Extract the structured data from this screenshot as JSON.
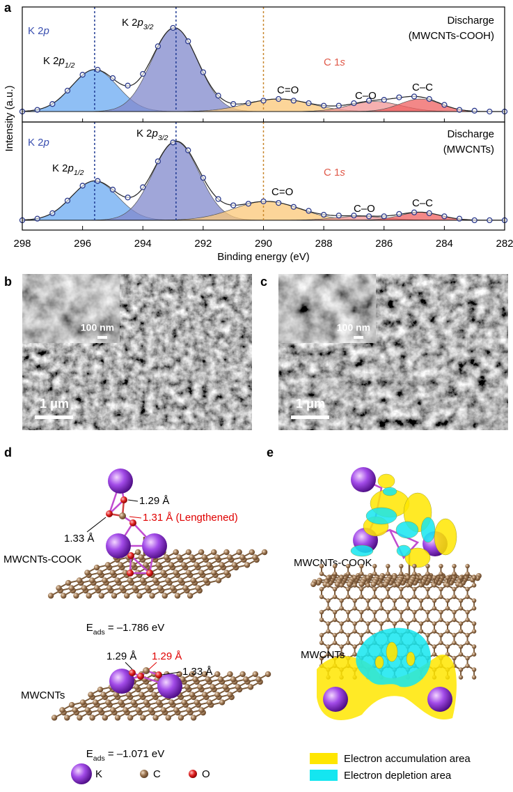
{
  "chart_data": {
    "type": "line",
    "panel_label": "a",
    "xlabel": "Binding energy (eV)",
    "ylabel": "Intensity (a.u.)",
    "xlim": [
      298,
      282
    ],
    "xticks": [
      298,
      296,
      294,
      292,
      290,
      288,
      286,
      284,
      282
    ],
    "ylim": [
      -0.125,
      1.25
    ],
    "reference_lines": [
      {
        "x": 295.6,
        "color": "#1f3a93"
      },
      {
        "x": 292.9,
        "color": "#1f3a93"
      },
      {
        "x": 290.0,
        "color": "#c8862a"
      }
    ],
    "marker_color": "#2b3a8c",
    "subplots": [
      {
        "title": [
          "Discharge",
          "(MWCNTs-COOH)"
        ],
        "groups": [
          {
            "text": [
              "K 2",
              "p"
            ],
            "color": "#3a4fb0"
          },
          {
            "text": [
              "C 1",
              "s"
            ],
            "color": "#e05a4a"
          }
        ],
        "components": [
          {
            "label": [
              "K 2",
              "p",
              "1/2"
            ],
            "center": 295.6,
            "height": 0.5,
            "fwhm": 1.8,
            "color": "#6aaaf2"
          },
          {
            "label": [
              "K 2",
              "p",
              "3/2"
            ],
            "center": 292.95,
            "height": 1.0,
            "fwhm": 1.8,
            "color": "#8088cc"
          },
          {
            "label": [
              "C=O"
            ],
            "center": 289.5,
            "height": 0.15,
            "fwhm": 2.5,
            "color": "#fbc777"
          },
          {
            "label": [
              "C–O"
            ],
            "center": 286.3,
            "height": 0.12,
            "fwhm": 2.0,
            "color": "#f29696"
          },
          {
            "label": [
              "C–C"
            ],
            "center": 284.8,
            "height": 0.15,
            "fwhm": 1.6,
            "color": "#ef6060"
          }
        ],
        "x": [
          298,
          297.5,
          297,
          296.5,
          296,
          295.5,
          295,
          294.5,
          294,
          293.5,
          293,
          292.5,
          292,
          291.5,
          291,
          290.5,
          290,
          289.5,
          289,
          288.5,
          288,
          287.5,
          287,
          286.5,
          286,
          285.5,
          285,
          284.5,
          284,
          283.5,
          283,
          282.5,
          282
        ],
        "values": [
          0,
          0.02,
          0.09,
          0.25,
          0.44,
          0.5,
          0.4,
          0.31,
          0.45,
          0.78,
          1.0,
          0.84,
          0.47,
          0.19,
          0.09,
          0.1,
          0.13,
          0.15,
          0.13,
          0.1,
          0.07,
          0.07,
          0.1,
          0.13,
          0.14,
          0.17,
          0.18,
          0.15,
          0.08,
          0.02,
          0.01,
          0,
          0
        ]
      },
      {
        "title": [
          "Discharge",
          "(MWCNTs)"
        ],
        "groups": [
          {
            "text": [
              "K 2",
              "p"
            ],
            "color": "#3a4fb0"
          },
          {
            "text": [
              "C 1",
              "s"
            ],
            "color": "#e05a4a"
          }
        ],
        "components": [
          {
            "label": [
              "K 2",
              "p",
              "1/2"
            ],
            "center": 295.6,
            "height": 0.5,
            "fwhm": 1.8,
            "color": "#6aaaf2"
          },
          {
            "label": [
              "K 2",
              "p",
              "3/2"
            ],
            "center": 292.9,
            "height": 1.0,
            "fwhm": 1.8,
            "color": "#8088cc"
          },
          {
            "label": [
              "C=O"
            ],
            "center": 289.9,
            "height": 0.24,
            "fwhm": 2.6,
            "color": "#fbc777"
          },
          {
            "label": [
              "C–O"
            ],
            "center": 286.8,
            "height": 0.05,
            "fwhm": 2.0,
            "color": "#f29696"
          },
          {
            "label": [
              "C–C"
            ],
            "center": 284.8,
            "height": 0.1,
            "fwhm": 1.6,
            "color": "#ef6060"
          }
        ],
        "x": [
          298,
          297.5,
          297,
          296.5,
          296,
          295.5,
          295,
          294.5,
          294,
          293.5,
          293,
          292.5,
          292,
          291.5,
          291,
          290.5,
          290,
          289.5,
          289,
          288.5,
          288,
          287.5,
          287,
          286.5,
          286,
          285.5,
          285,
          284.5,
          284,
          283.5,
          283,
          282.5,
          282
        ],
        "values": [
          0,
          0.02,
          0.09,
          0.25,
          0.44,
          0.5,
          0.39,
          0.29,
          0.42,
          0.75,
          0.99,
          0.89,
          0.54,
          0.27,
          0.19,
          0.21,
          0.24,
          0.22,
          0.17,
          0.12,
          0.07,
          0.06,
          0.06,
          0.05,
          0.05,
          0.08,
          0.1,
          0.09,
          0.05,
          0.02,
          0,
          0,
          0
        ]
      }
    ]
  },
  "panels": {
    "b": {
      "label": "b",
      "inset_scale": "100 nm",
      "scale": "1 μm"
    },
    "c": {
      "label": "c",
      "inset_scale": "100 nm",
      "scale": "1 μm"
    },
    "d": {
      "label": "d",
      "cook": {
        "name": "MWCNTs-COOK",
        "bonds": [
          {
            "text": "1.29 Å",
            "color": "#000000"
          },
          {
            "text": "1.31 Å (Lengthened)",
            "color": "#e00000"
          },
          {
            "text": "1.33 Å",
            "color": "#000000"
          }
        ],
        "energy": [
          "E",
          "ads",
          " = –1.786 eV"
        ]
      },
      "plain": {
        "name": "MWCNTs",
        "bonds": [
          {
            "text": "1.29 Å",
            "color": "#000000"
          },
          {
            "text": "1.29 Å",
            "color": "#e00000"
          },
          {
            "text": "1.33 Å",
            "color": "#000000"
          }
        ],
        "energy": [
          "E",
          "ads",
          " = –1.071 eV"
        ]
      },
      "legend": [
        "K",
        "C",
        "O"
      ]
    },
    "e": {
      "label": "e",
      "cook_name": "MWCNTs-COOK",
      "plain_name": "MWCNTs",
      "legend": [
        {
          "name": "Electron accumulation area",
          "color": "#ffe600"
        },
        {
          "name": "Electron depletion area",
          "color": "#14e6f0"
        }
      ]
    }
  }
}
